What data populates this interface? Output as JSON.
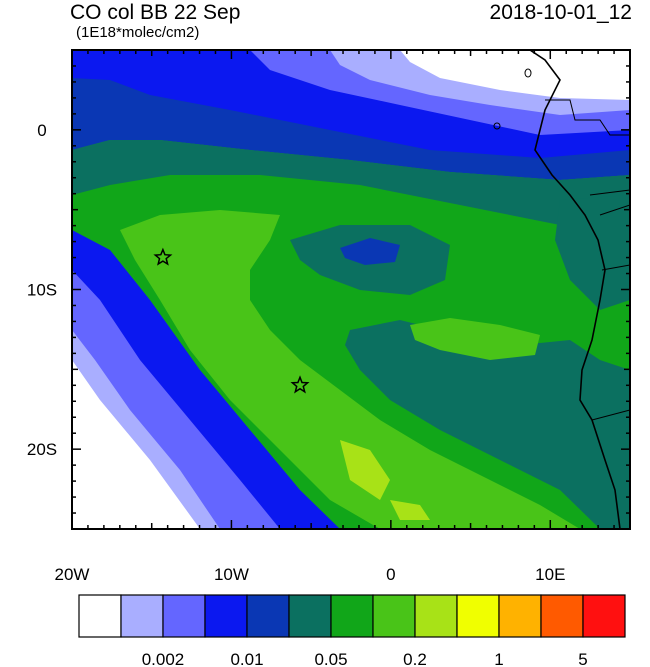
{
  "title": "CO col BB 22 Sep",
  "datetime": "2018-10-01_12",
  "units": "(1E18*molec/cm2)",
  "axes": {
    "x_ticks": [
      "20W",
      "10W",
      "0",
      "10E"
    ],
    "y_ticks": [
      "0",
      "10S",
      "20S"
    ],
    "lon_range": [
      -20,
      15
    ],
    "lat_range": [
      -25,
      5
    ]
  },
  "markers": [
    {
      "name": "star-1",
      "lon": -14.3,
      "lat": -8.0
    },
    {
      "name": "star-2",
      "lon": -5.7,
      "lat": -16.0
    }
  ],
  "colorbar": {
    "colors": [
      "#ffffff",
      "#a9aeff",
      "#6466ff",
      "#0b18f0",
      "#0a37b4",
      "#0b7060",
      "#11a619",
      "#49c418",
      "#a8e217",
      "#f0ff00",
      "#ffb200",
      "#ff5a00",
      "#ff1010"
    ],
    "labels": [
      "0.002",
      "0.01",
      "0.05",
      "0.2",
      "1",
      "5"
    ]
  }
}
